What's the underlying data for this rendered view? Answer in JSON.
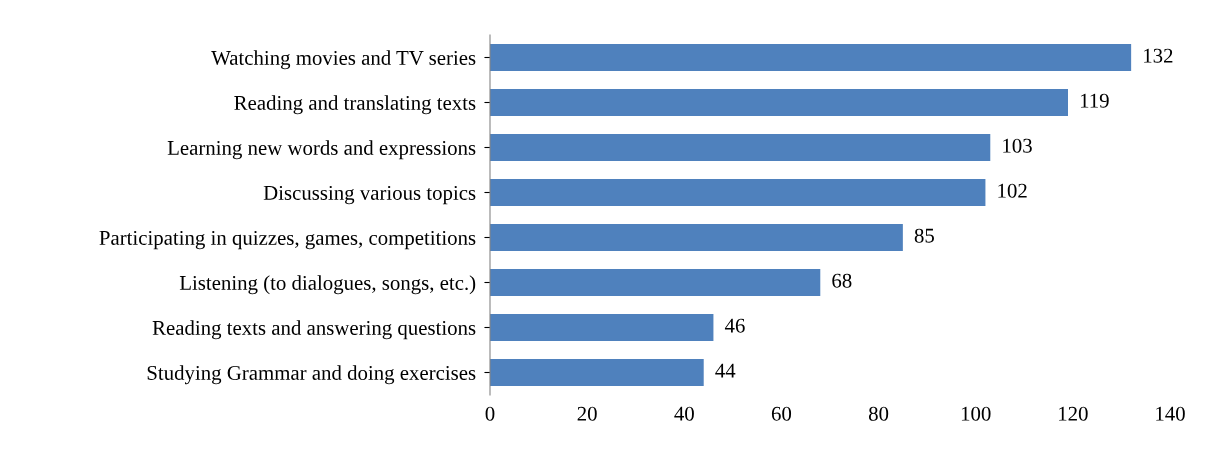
{
  "chart_data": {
    "type": "bar",
    "orientation": "horizontal",
    "categories": [
      "Watching movies and TV series",
      "Reading and translating texts",
      "Learning new words and expressions",
      "Discussing various topics",
      "Participating in quizzes, games, competitions",
      "Listening (to dialogues, songs, etc.)",
      "Reading texts and answering questions",
      "Studying Grammar and doing exercises"
    ],
    "values": [
      132,
      119,
      103,
      102,
      85,
      68,
      46,
      44
    ],
    "color": "#4f81bd",
    "xlim": [
      0,
      140
    ],
    "xticks": [
      0,
      20,
      40,
      60,
      80,
      100,
      120,
      140
    ],
    "data_labels": true,
    "grid": false,
    "legend": false
  }
}
